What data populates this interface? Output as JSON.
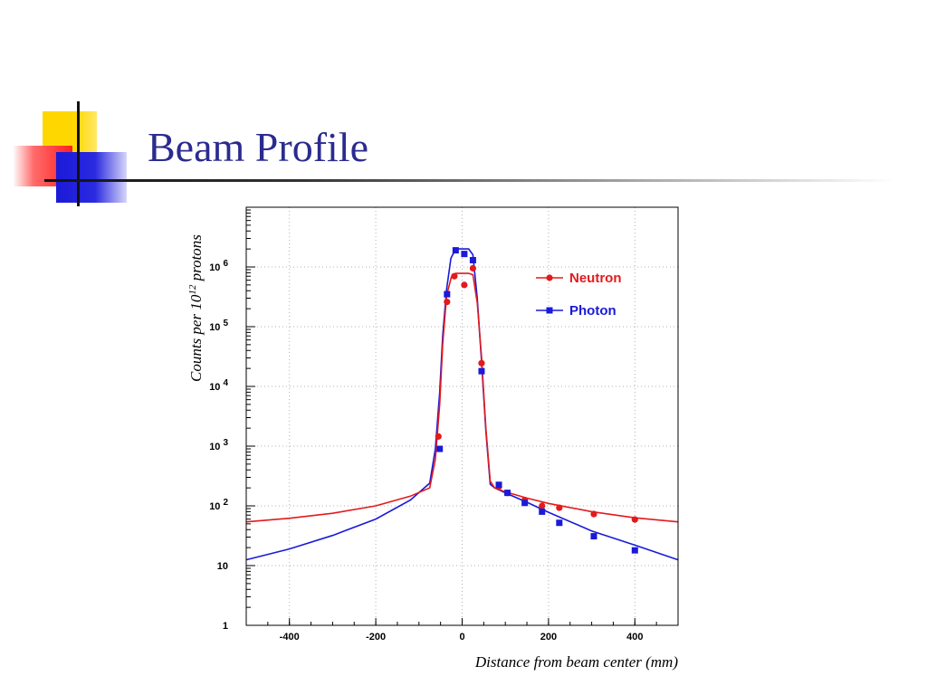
{
  "slide": {
    "title": "Beam Profile"
  },
  "chart_data": {
    "type": "scatter",
    "xlabel": "Distance from beam center (mm)",
    "ylabel": "Counts per 10^12 protons",
    "ylabel_base": "Counts per 10",
    "ylabel_exponent": "12",
    "ylabel_suffix": " protons",
    "xlim": [
      -500,
      500
    ],
    "ylim": [
      1,
      10000000
    ],
    "yscale": "log",
    "grid": true,
    "legend_position": "top-right",
    "x_ticks": [
      {
        "value": -400,
        "label": "-400"
      },
      {
        "value": -200,
        "label": "-200"
      },
      {
        "value": 0,
        "label": "0"
      },
      {
        "value": 200,
        "label": "200"
      },
      {
        "value": 400,
        "label": "400"
      }
    ],
    "y_ticks": [
      {
        "value": 1,
        "base": "1",
        "exp": ""
      },
      {
        "value": 10,
        "base": "10",
        "exp": ""
      },
      {
        "value": 100,
        "base": "10",
        "exp": "2"
      },
      {
        "value": 1000,
        "base": "10",
        "exp": "3"
      },
      {
        "value": 10000,
        "base": "10",
        "exp": "4"
      },
      {
        "value": 100000,
        "base": "10",
        "exp": "5"
      },
      {
        "value": 1000000,
        "base": "10",
        "exp": "6"
      }
    ],
    "series": [
      {
        "name": "Neutron",
        "color": "#e31a1c",
        "marker": "circle",
        "points": [
          {
            "x": -55,
            "y": 1450
          },
          {
            "x": -35,
            "y": 260000
          },
          {
            "x": -18,
            "y": 700000
          },
          {
            "x": 5,
            "y": 500000
          },
          {
            "x": 25,
            "y": 950000
          },
          {
            "x": 45,
            "y": 24500
          },
          {
            "x": 85,
            "y": 210
          },
          {
            "x": 105,
            "y": 165
          },
          {
            "x": 145,
            "y": 125
          },
          {
            "x": 185,
            "y": 100
          },
          {
            "x": 225,
            "y": 93
          },
          {
            "x": 305,
            "y": 73
          },
          {
            "x": 400,
            "y": 59
          }
        ],
        "fit": [
          {
            "x": -500,
            "y": 54
          },
          {
            "x": -400,
            "y": 62
          },
          {
            "x": -300,
            "y": 75
          },
          {
            "x": -200,
            "y": 100
          },
          {
            "x": -120,
            "y": 145
          },
          {
            "x": -75,
            "y": 200
          },
          {
            "x": -62,
            "y": 600
          },
          {
            "x": -52,
            "y": 5000
          },
          {
            "x": -45,
            "y": 50000
          },
          {
            "x": -36,
            "y": 330000
          },
          {
            "x": -25,
            "y": 680000
          },
          {
            "x": -15,
            "y": 780000
          },
          {
            "x": 15,
            "y": 780000
          },
          {
            "x": 25,
            "y": 740000
          },
          {
            "x": 35,
            "y": 250000
          },
          {
            "x": 45,
            "y": 30000
          },
          {
            "x": 55,
            "y": 2000
          },
          {
            "x": 65,
            "y": 260
          },
          {
            "x": 75,
            "y": 200
          },
          {
            "x": 100,
            "y": 172
          },
          {
            "x": 150,
            "y": 135
          },
          {
            "x": 200,
            "y": 110
          },
          {
            "x": 300,
            "y": 80
          },
          {
            "x": 400,
            "y": 63
          },
          {
            "x": 500,
            "y": 54
          }
        ]
      },
      {
        "name": "Photon",
        "color": "#1a1ad8",
        "marker": "square",
        "points": [
          {
            "x": -52,
            "y": 900
          },
          {
            "x": -35,
            "y": 350000
          },
          {
            "x": -15,
            "y": 1900000
          },
          {
            "x": 5,
            "y": 1650000
          },
          {
            "x": 25,
            "y": 1300000
          },
          {
            "x": 45,
            "y": 18000
          },
          {
            "x": 85,
            "y": 225
          },
          {
            "x": 105,
            "y": 165
          },
          {
            "x": 145,
            "y": 112
          },
          {
            "x": 185,
            "y": 80
          },
          {
            "x": 225,
            "y": 52
          },
          {
            "x": 305,
            "y": 31
          },
          {
            "x": 400,
            "y": 18
          }
        ],
        "fit": [
          {
            "x": -500,
            "y": 12.5
          },
          {
            "x": -400,
            "y": 19
          },
          {
            "x": -300,
            "y": 32
          },
          {
            "x": -200,
            "y": 60
          },
          {
            "x": -120,
            "y": 125
          },
          {
            "x": -75,
            "y": 240
          },
          {
            "x": -62,
            "y": 900
          },
          {
            "x": -52,
            "y": 8000
          },
          {
            "x": -45,
            "y": 70000
          },
          {
            "x": -36,
            "y": 420000
          },
          {
            "x": -26,
            "y": 1400000
          },
          {
            "x": -15,
            "y": 2000000
          },
          {
            "x": 15,
            "y": 2000000
          },
          {
            "x": 25,
            "y": 1600000
          },
          {
            "x": 35,
            "y": 300000
          },
          {
            "x": 45,
            "y": 25000
          },
          {
            "x": 55,
            "y": 1800
          },
          {
            "x": 65,
            "y": 230
          },
          {
            "x": 75,
            "y": 200
          },
          {
            "x": 100,
            "y": 165
          },
          {
            "x": 150,
            "y": 115
          },
          {
            "x": 200,
            "y": 78
          },
          {
            "x": 300,
            "y": 38
          },
          {
            "x": 400,
            "y": 22
          },
          {
            "x": 500,
            "y": 12.5
          }
        ]
      }
    ]
  }
}
